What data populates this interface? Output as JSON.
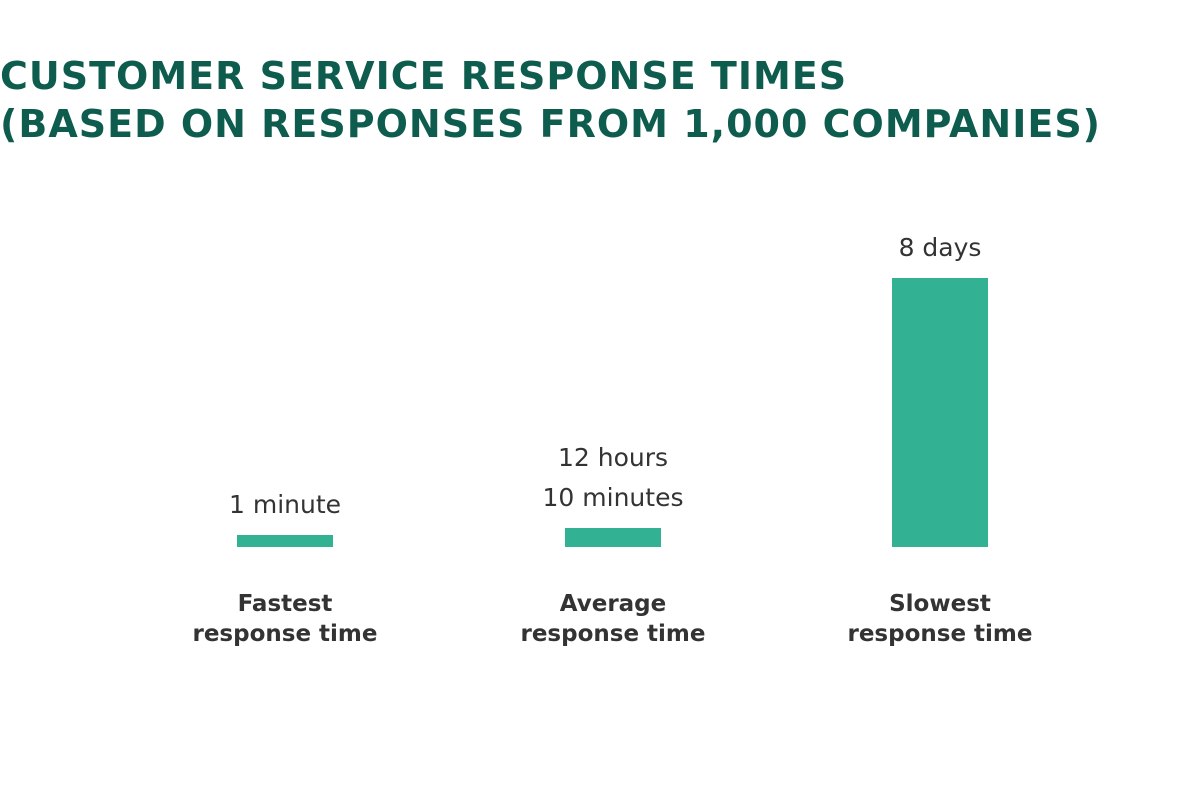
{
  "title_lines": [
    "CUSTOMER SERVICE RESPONSE TIMES",
    "(BASED ON RESPONSES FROM 1,000 COMPANIES)"
  ],
  "colors": {
    "title": "#0d5c4e",
    "bar": "#33b293",
    "text": "#333333"
  },
  "chart_data": {
    "type": "bar",
    "title": "CUSTOMER SERVICE RESPONSE TIMES (BASED ON RESPONSES FROM 1,000 COMPANIES)",
    "unit": "minutes",
    "categories": [
      [
        "Fastest",
        "response time"
      ],
      [
        "Average",
        "response time"
      ],
      [
        "Slowest",
        "response time"
      ]
    ],
    "value_labels": [
      [
        "1 minute"
      ],
      [
        "12 hours",
        "10 minutes"
      ],
      [
        "8 days"
      ]
    ],
    "values": [
      1,
      730,
      11520
    ],
    "ylim": [
      0,
      11520
    ],
    "grid": false,
    "axes_visible": false
  }
}
